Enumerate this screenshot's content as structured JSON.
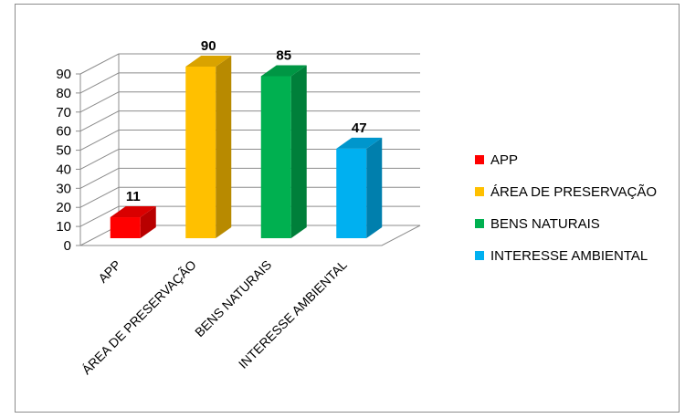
{
  "chart_data": {
    "type": "bar",
    "style": "3d-column",
    "categories": [
      "APP",
      "ÁREA DE PRESERVAÇÃO",
      "BENS NATURAIS",
      "INTERESSE AMBIENTAL"
    ],
    "values": [
      11,
      90,
      85,
      47
    ],
    "colors": [
      "#ff0000",
      "#ffc000",
      "#00b050",
      "#00b0f0"
    ],
    "ylim": [
      0,
      90
    ],
    "yticks": [
      0,
      10,
      20,
      30,
      40,
      50,
      60,
      70,
      80,
      90
    ],
    "grid": true,
    "legend": {
      "position": "right",
      "entries": [
        "APP",
        "ÁREA DE PRESERVAÇÃO",
        "BENS NATURAIS",
        "INTERESSE AMBIENTAL"
      ]
    },
    "data_labels": [
      "11",
      "90",
      "85",
      "47"
    ]
  }
}
